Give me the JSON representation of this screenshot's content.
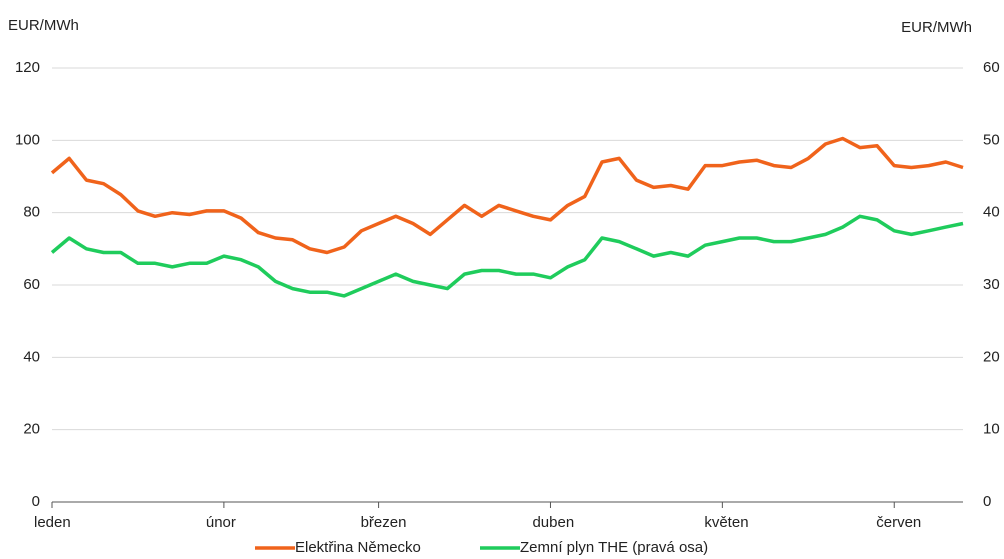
{
  "chart_data": {
    "type": "line",
    "y_label": "EUR/MWh",
    "y2_label": "EUR/MWh",
    "categories": [
      "leden",
      null,
      null,
      null,
      null,
      null,
      null,
      null,
      null,
      null,
      "únor",
      null,
      null,
      null,
      null,
      null,
      null,
      null,
      null,
      "březen",
      null,
      null,
      null,
      null,
      null,
      null,
      null,
      null,
      null,
      "duben",
      null,
      null,
      null,
      null,
      null,
      null,
      null,
      null,
      null,
      "květen",
      null,
      null,
      null,
      null,
      null,
      null,
      null,
      null,
      null,
      "červen",
      null,
      null,
      null,
      null
    ],
    "series": [
      {
        "name": "Elektřina Německo",
        "color": "#f0631b",
        "values": [
          91,
          95,
          89,
          88,
          85,
          80.5,
          79,
          80,
          79.5,
          80.5,
          80.5,
          78.5,
          74.5,
          73,
          72.5,
          70,
          69,
          70.5,
          75,
          77,
          79,
          77,
          74,
          78,
          82,
          79,
          82,
          80.5,
          79,
          78,
          82,
          84.5,
          94,
          95,
          89,
          87,
          87.5,
          86.5,
          93,
          93,
          94,
          94.5,
          93,
          92.5,
          95,
          99,
          100.5,
          98,
          98.5,
          93,
          92.5,
          93,
          94,
          92.5
        ]
      },
      {
        "name": "Zemní plyn THE (pravá osa)",
        "color": "#1fcc5c",
        "axis": "y2",
        "values": [
          34.5,
          36.5,
          35,
          34.5,
          34.5,
          33,
          33,
          32.5,
          33,
          33,
          34,
          33.5,
          32.5,
          30.5,
          29.5,
          29,
          29,
          28.5,
          29.5,
          30.5,
          31.5,
          30.5,
          30,
          29.5,
          31.5,
          32,
          32,
          31.5,
          31.5,
          31,
          32.5,
          33.5,
          36.5,
          36,
          35,
          34,
          34.5,
          34,
          35.5,
          36,
          36.5,
          36.5,
          36,
          36,
          36.5,
          37,
          38,
          39.5,
          39,
          37.5,
          37,
          37.5,
          38,
          38.5
        ]
      }
    ],
    "ylim": [
      0,
      120
    ],
    "yticks": [
      0,
      20,
      40,
      60,
      80,
      100,
      120
    ],
    "y2lim": [
      0,
      60
    ],
    "y2ticks": [
      0,
      10,
      20,
      30,
      40,
      50,
      60
    ],
    "grid": true
  }
}
